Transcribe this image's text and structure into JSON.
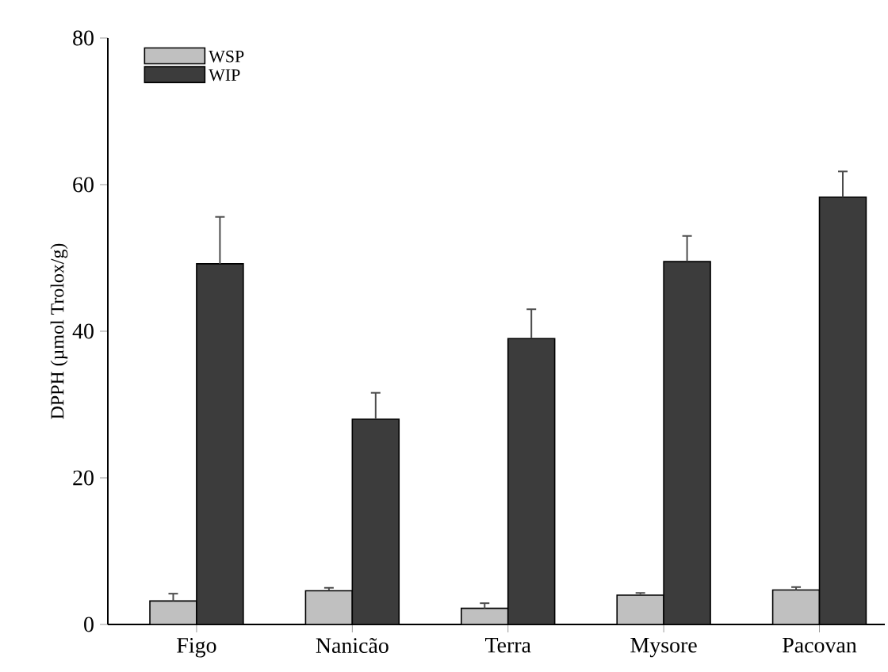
{
  "chart_data": {
    "type": "bar",
    "ylabel": "DPPH (µmol Trolox/g)",
    "categories": [
      "Figo",
      "Nanicão",
      "Terra",
      "Mysore",
      "Pacovan"
    ],
    "series": [
      {
        "name": "WSP",
        "color": "#c0c0c0",
        "values": [
          3.2,
          4.6,
          2.2,
          4.0,
          4.7
        ],
        "errors": [
          [
            3.2,
            4.2
          ],
          [
            4.6,
            5.0
          ],
          [
            2.2,
            2.9
          ],
          [
            4.0,
            4.3
          ],
          [
            4.7,
            5.1
          ]
        ]
      },
      {
        "name": "WIP",
        "color": "#3c3c3c",
        "values": [
          49.2,
          28.0,
          39.0,
          49.5,
          58.3
        ],
        "errors": [
          [
            49.2,
            55.6
          ],
          [
            28.0,
            31.6
          ],
          [
            39.0,
            43.0
          ],
          [
            49.5,
            53.0
          ],
          [
            58.3,
            61.8
          ]
        ]
      }
    ],
    "ylim": [
      0,
      80
    ],
    "yticks": [
      0,
      20,
      40,
      60,
      80
    ],
    "legend": "top left",
    "grid": false
  }
}
